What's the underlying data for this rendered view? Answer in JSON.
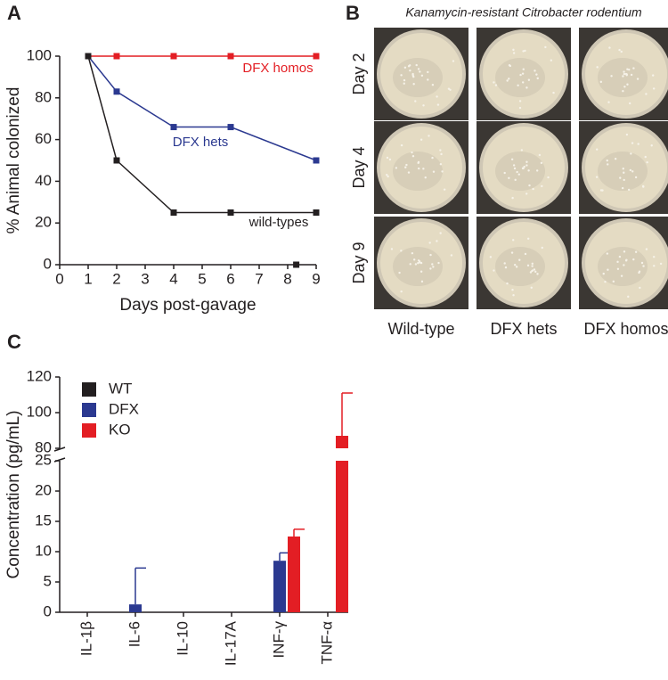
{
  "chart_data": [
    {
      "type": "line",
      "panel": "A",
      "xlabel": "Days post-gavage",
      "ylabel": "% Animal colonized",
      "xlim": [
        0,
        9
      ],
      "xticks": [
        0,
        1,
        2,
        3,
        4,
        5,
        6,
        7,
        8,
        9
      ],
      "ylim": [
        0,
        100
      ],
      "yticks": [
        0,
        20,
        40,
        60,
        80,
        100
      ],
      "series": [
        {
          "name": "DFX homos",
          "color": "#e31e24",
          "x": [
            1,
            2,
            4,
            6,
            9
          ],
          "values": [
            100,
            100,
            100,
            100,
            100
          ]
        },
        {
          "name": "DFX hets",
          "color": "#2b3990",
          "x": [
            1,
            2,
            4,
            6,
            9
          ],
          "values": [
            100,
            83,
            66,
            66,
            50
          ]
        },
        {
          "name": "wild-types",
          "color": "#231f20",
          "x": [
            1,
            2,
            4,
            6,
            9
          ],
          "values": [
            100,
            50,
            25,
            25,
            25
          ]
        },
        {
          "name": null,
          "color": "#231f20",
          "line": false,
          "x": [
            8.3
          ],
          "values": [
            0
          ]
        }
      ]
    },
    {
      "type": "bar",
      "panel": "C",
      "ylabel": "Concentration (pg/mL)",
      "categories": [
        "IL-1β",
        "IL-6",
        "IL-10",
        "IL-17A",
        "INF-γ",
        "TNF-α"
      ],
      "ylim": [
        0,
        120
      ],
      "ybreak": [
        25,
        80
      ],
      "yticks": [
        0,
        5,
        10,
        15,
        20,
        25,
        80,
        100,
        120
      ],
      "series": [
        {
          "name": "WT",
          "color": "#231f20",
          "values": [
            0,
            0,
            0,
            0,
            0,
            0
          ],
          "errors": [
            null,
            null,
            null,
            null,
            null,
            null
          ]
        },
        {
          "name": "DFX",
          "color": "#2b3990",
          "values": [
            0,
            1.3,
            0,
            0,
            8.5,
            0
          ],
          "errors": [
            null,
            6,
            null,
            null,
            1.3,
            null
          ]
        },
        {
          "name": "KO",
          "color": "#e31e24",
          "values": [
            0,
            0,
            0,
            0,
            12.5,
            87
          ],
          "errors": [
            null,
            null,
            null,
            null,
            1.2,
            24
          ]
        }
      ]
    }
  ],
  "plates": {
    "panel": "B",
    "title": "Kanamycin-resistant Citrobacter rodentium",
    "rows": [
      "Day 2",
      "Day 4",
      "Day 9"
    ],
    "columns": [
      "Wild-type",
      "DFX hets",
      "DFX homos"
    ]
  }
}
